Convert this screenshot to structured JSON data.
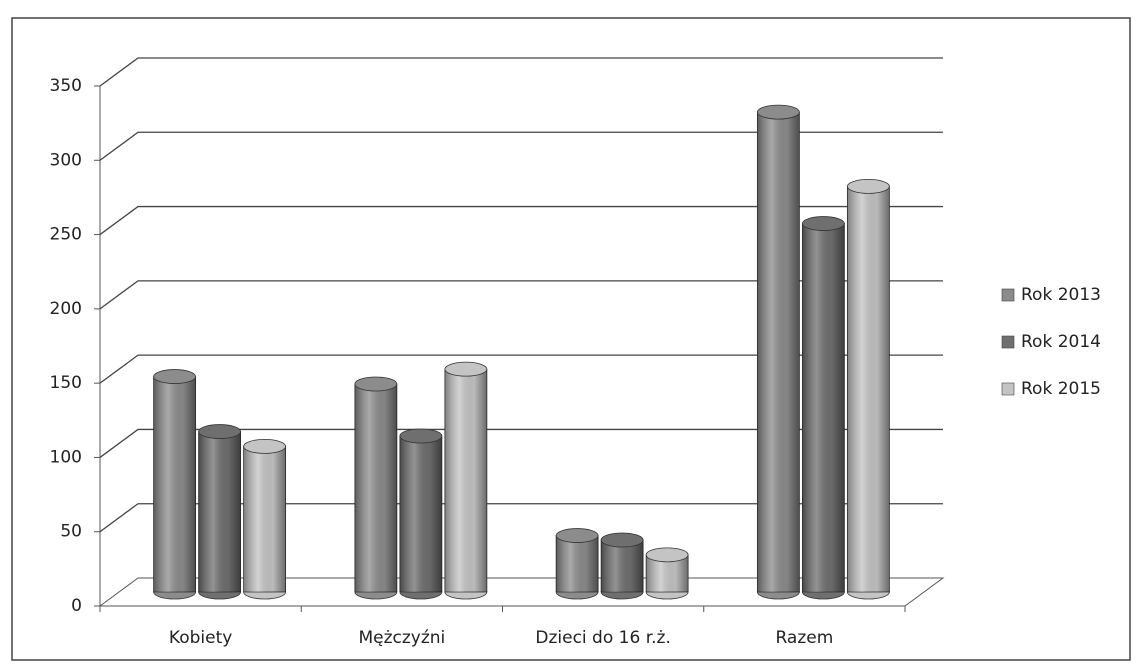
{
  "chart_data": {
    "type": "bar3d",
    "categories": [
      "Kobiety",
      "Mężczyźni",
      "Dzieci do 16 r.ż.",
      "Razem"
    ],
    "series": [
      {
        "name": "Rok 2013",
        "color": "#8c8c8c",
        "values": [
          145,
          140,
          38,
          323
        ]
      },
      {
        "name": "Rok 2014",
        "color": "#6f6f6f",
        "values": [
          108,
          105,
          35,
          248
        ]
      },
      {
        "name": "Rok 2015",
        "color": "#c4c4c4",
        "values": [
          98,
          150,
          25,
          273
        ]
      }
    ],
    "ylim": [
      0,
      350
    ],
    "yticks": [
      0,
      50,
      100,
      150,
      200,
      250,
      300,
      350
    ],
    "grid": true,
    "legend": "right"
  }
}
